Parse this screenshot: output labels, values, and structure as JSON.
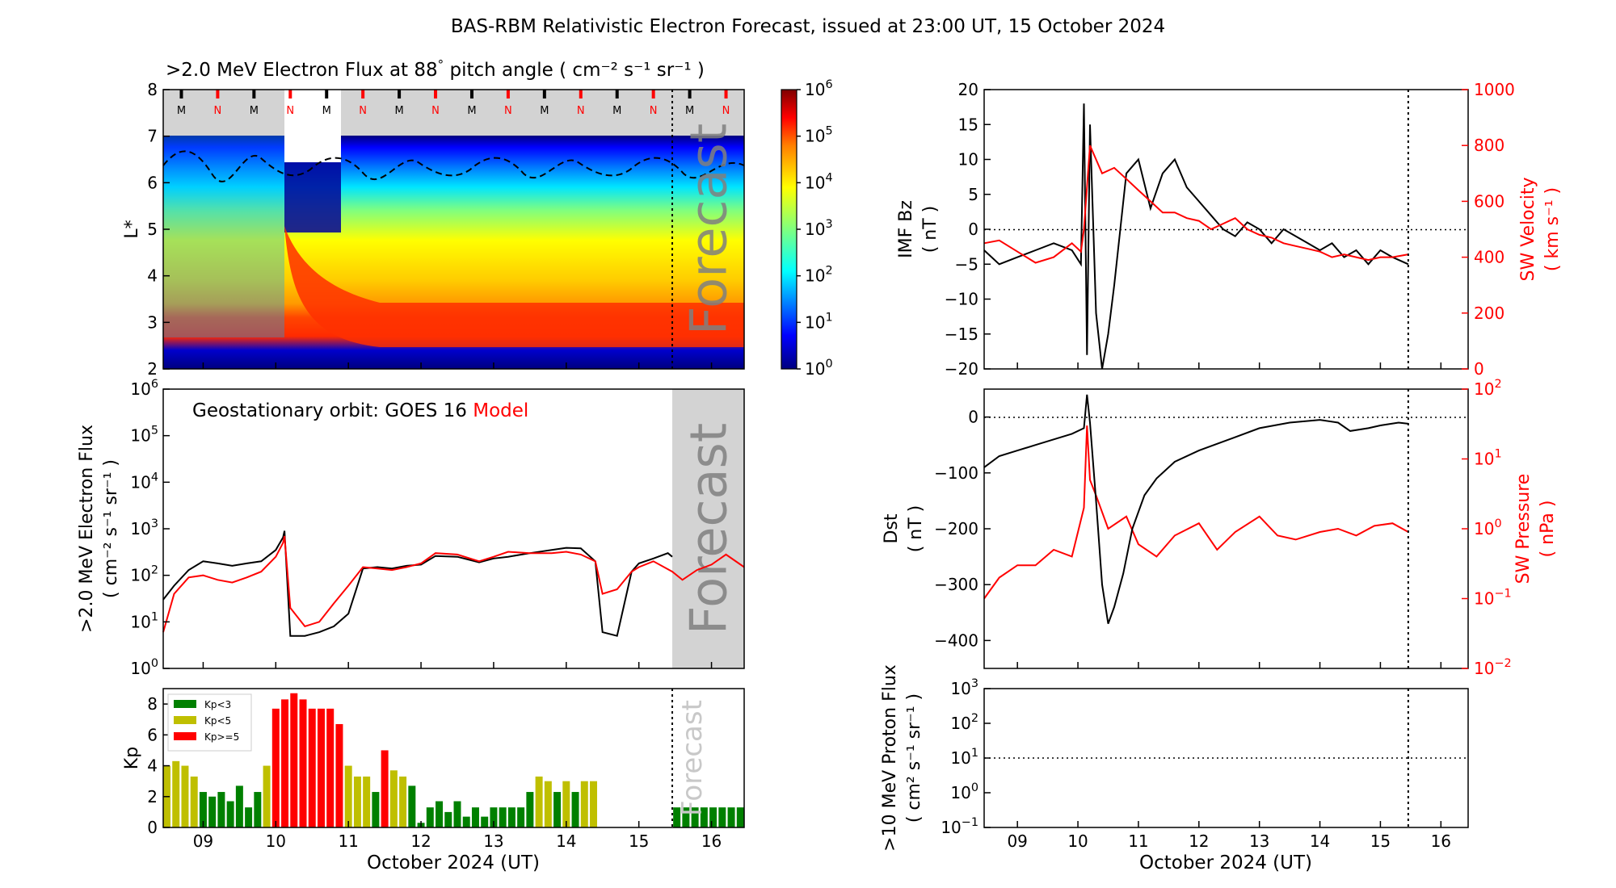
{
  "figure": {
    "title": "BAS-RBM Relativistic Electron Forecast, issued at 23:00 UT, 15 October 2024"
  },
  "chart_data": [
    {
      "id": "flux-map",
      "type": "heatmap",
      "title_main": ">2.0 MeV Electron Flux at 88",
      "title_deg": "°",
      "title_units": "( cm⁻² s⁻¹ sr⁻¹ )",
      "ylabel": "L*",
      "xlim": [
        8.45,
        16.45
      ],
      "ylim": [
        2,
        8
      ],
      "yticks": [
        "2",
        "3",
        "4",
        "5",
        "6",
        "7",
        "8"
      ],
      "markers": [
        {
          "x": 8.7,
          "label": "M",
          "color": "#000000"
        },
        {
          "x": 9.2,
          "label": "N",
          "color": "#ff0000"
        },
        {
          "x": 9.7,
          "label": "M",
          "color": "#000000"
        },
        {
          "x": 10.2,
          "label": "N",
          "color": "#ff0000"
        },
        {
          "x": 10.7,
          "label": "M",
          "color": "#000000"
        },
        {
          "x": 11.2,
          "label": "N",
          "color": "#ff0000"
        },
        {
          "x": 11.7,
          "label": "M",
          "color": "#000000"
        },
        {
          "x": 12.2,
          "label": "N",
          "color": "#ff0000"
        },
        {
          "x": 12.7,
          "label": "M",
          "color": "#000000"
        },
        {
          "x": 13.2,
          "label": "N",
          "color": "#ff0000"
        },
        {
          "x": 13.7,
          "label": "M",
          "color": "#000000"
        },
        {
          "x": 14.2,
          "label": "N",
          "color": "#ff0000"
        },
        {
          "x": 14.7,
          "label": "M",
          "color": "#000000"
        },
        {
          "x": 15.2,
          "label": "N",
          "color": "#ff0000"
        },
        {
          "x": 15.7,
          "label": "M",
          "color": "#000000"
        },
        {
          "x": 16.2,
          "label": "N",
          "color": "#ff0000"
        }
      ],
      "forecast_start": 15.46,
      "forecast_label": "Forecast",
      "colorbar": {
        "label_base": "10",
        "exponents": [
          "0",
          "1",
          "2",
          "3",
          "4",
          "5",
          "6"
        ],
        "colors": [
          "#00007f",
          "#0000ff",
          "#007fff",
          "#00ffff",
          "#7fff7f",
          "#ffff00",
          "#ff7f00",
          "#ff0000",
          "#7f0000"
        ]
      }
    },
    {
      "id": "geo-flux",
      "type": "line",
      "ylabel_line1": ">2.0 MeV Electron Flux",
      "ylabel_line2": "( cm⁻² s⁻¹ sr⁻¹ )",
      "yscale": "log",
      "ylim": [
        1,
        1000000
      ],
      "yticks_exp": [
        "0",
        "1",
        "2",
        "3",
        "4",
        "5",
        "6"
      ],
      "ytick_base": "10",
      "legend_prefix": "Geostationary orbit:   GOES 16",
      "legend_model": "Model",
      "forecast_label": "Forecast",
      "series": [
        {
          "name": "GOES 16",
          "color": "#000000",
          "x": [
            8.45,
            8.6,
            8.8,
            9.0,
            9.2,
            9.4,
            9.6,
            9.8,
            10.0,
            10.1,
            10.12,
            10.2,
            10.4,
            10.6,
            10.8,
            11.0,
            11.2,
            11.4,
            11.6,
            11.8,
            12.0,
            12.2,
            12.5,
            12.8,
            13.0,
            13.2,
            13.5,
            13.8,
            14.0,
            14.2,
            14.4,
            14.5,
            14.7,
            14.9,
            15.0,
            15.2,
            15.4,
            15.46
          ],
          "y": [
            30,
            60,
            130,
            200,
            180,
            160,
            180,
            200,
            350,
            650,
            900,
            5,
            5,
            6,
            8,
            15,
            140,
            150,
            140,
            160,
            170,
            260,
            250,
            190,
            230,
            250,
            300,
            350,
            390,
            380,
            200,
            6,
            5,
            120,
            180,
            230,
            300,
            250
          ]
        },
        {
          "name": "Model",
          "color": "#ff0000",
          "x": [
            8.45,
            8.6,
            8.8,
            9.0,
            9.2,
            9.4,
            9.6,
            9.8,
            10.0,
            10.1,
            10.12,
            10.2,
            10.4,
            10.6,
            10.8,
            11.0,
            11.2,
            11.4,
            11.6,
            11.8,
            12.0,
            12.2,
            12.5,
            12.8,
            13.0,
            13.2,
            13.5,
            13.8,
            14.0,
            14.2,
            14.4,
            14.5,
            14.7,
            14.9,
            15.0,
            15.2,
            15.46,
            15.6,
            15.8,
            16.0,
            16.2,
            16.45
          ],
          "y": [
            6,
            40,
            90,
            100,
            80,
            70,
            90,
            120,
            250,
            500,
            700,
            20,
            8,
            10,
            25,
            60,
            150,
            140,
            130,
            150,
            180,
            300,
            280,
            200,
            250,
            320,
            300,
            300,
            320,
            280,
            200,
            40,
            50,
            120,
            150,
            200,
            120,
            80,
            130,
            170,
            280,
            150
          ]
        }
      ],
      "forecast_start": 15.46
    },
    {
      "id": "kp",
      "type": "bar",
      "ylabel": "Kp",
      "ylim": [
        0,
        9
      ],
      "yticks": [
        "0",
        "2",
        "4",
        "6",
        "8"
      ],
      "xticks": [
        "09",
        "10",
        "11",
        "12",
        "13",
        "14",
        "15",
        "16"
      ],
      "xtick_values": [
        9,
        10,
        11,
        12,
        13,
        14,
        15,
        16
      ],
      "xlabel": "October 2024 (UT)",
      "forecast_label": "Forecast",
      "legend": [
        {
          "label": "Kp<3",
          "color": "#008000"
        },
        {
          "label": "Kp<5",
          "color": "#bfbf00"
        },
        {
          "label": "Kp>=5",
          "color": "#ff0000"
        }
      ],
      "bar_start": 8.5,
      "bar_step": 0.125,
      "values": [
        4.0,
        4.3,
        4.0,
        3.3,
        2.3,
        2.0,
        2.3,
        1.7,
        2.7,
        1.3,
        2.3,
        4.0,
        7.7,
        8.3,
        8.7,
        8.3,
        7.7,
        7.7,
        7.7,
        6.7,
        4.0,
        3.3,
        3.3,
        2.3,
        5.0,
        3.7,
        3.3,
        2.7,
        0.3,
        1.3,
        1.7,
        1.0,
        1.7,
        0.7,
        1.3,
        0.7,
        1.3,
        1.3,
        1.3,
        1.3,
        2.3,
        3.3,
        3.0,
        2.3,
        3.0,
        2.3,
        3.0,
        3.0
      ],
      "forecast_start": 15.46,
      "forecast_value": 1.3
    },
    {
      "id": "imf",
      "type": "line",
      "ylabel_left_line1": "IMF Bz",
      "ylabel_left_line2": "( nT )",
      "ylabel_right_line1": "SW Velocity",
      "ylabel_right_line2": "( km s⁻¹ )",
      "ylim_left": [
        -20,
        20
      ],
      "yticks_left": [
        "−20",
        "−15",
        "−10",
        "−5",
        "0",
        "5",
        "10",
        "15",
        "20"
      ],
      "ylim_right": [
        0,
        1000
      ],
      "yticks_right": [
        "0",
        "200",
        "400",
        "600",
        "800",
        "1000"
      ],
      "series": [
        {
          "name": "IMF Bz",
          "color": "#000000",
          "x": [
            8.45,
            8.7,
            9.0,
            9.3,
            9.6,
            9.9,
            10.05,
            10.1,
            10.15,
            10.2,
            10.3,
            10.4,
            10.5,
            10.6,
            10.8,
            11.0,
            11.2,
            11.4,
            11.6,
            11.8,
            12.0,
            12.2,
            12.4,
            12.6,
            12.8,
            13.0,
            13.2,
            13.4,
            13.6,
            13.8,
            14.0,
            14.2,
            14.4,
            14.6,
            14.8,
            15.0,
            15.2,
            15.46
          ],
          "y": [
            -3,
            -5,
            -4,
            -3,
            -2,
            -3,
            -5,
            18,
            -18,
            15,
            -12,
            -20,
            -15,
            -8,
            8,
            10,
            3,
            8,
            10,
            6,
            4,
            2,
            0,
            -1,
            1,
            0,
            -2,
            0,
            -1,
            -2,
            -3,
            -2,
            -4,
            -3,
            -5,
            -3,
            -4,
            -5
          ]
        },
        {
          "name": "SW Velocity",
          "color": "#ff0000",
          "x": [
            8.45,
            8.7,
            9.0,
            9.3,
            9.6,
            9.9,
            10.05,
            10.1,
            10.2,
            10.3,
            10.4,
            10.6,
            10.8,
            11.0,
            11.2,
            11.4,
            11.6,
            11.8,
            12.0,
            12.2,
            12.4,
            12.6,
            12.8,
            13.0,
            13.2,
            13.4,
            13.6,
            13.8,
            14.0,
            14.2,
            14.4,
            14.6,
            14.8,
            15.0,
            15.2,
            15.46
          ],
          "y": [
            450,
            460,
            420,
            380,
            400,
            450,
            420,
            500,
            800,
            750,
            700,
            720,
            680,
            640,
            600,
            560,
            560,
            540,
            530,
            500,
            520,
            540,
            500,
            480,
            470,
            450,
            440,
            430,
            420,
            400,
            410,
            400,
            390,
            400,
            400,
            410
          ]
        }
      ],
      "forecast_start": 15.46
    },
    {
      "id": "dst",
      "type": "line",
      "ylabel_left_line1": "Dst",
      "ylabel_left_line2": "( nT )",
      "ylabel_right_line1": "SW Pressure",
      "ylabel_right_line2": "( nPa )",
      "ylim_left": [
        -450,
        50
      ],
      "yticks_left": [
        "−400",
        "−300",
        "−200",
        "−100",
        "0"
      ],
      "ylim_right_exp": [
        -2,
        2
      ],
      "yticks_right_exp": [
        "−2",
        "−1",
        "0",
        "1",
        "2"
      ],
      "ytick_base": "10",
      "series": [
        {
          "name": "Dst",
          "color": "#000000",
          "x": [
            8.45,
            8.7,
            9.0,
            9.3,
            9.6,
            9.9,
            10.1,
            10.15,
            10.2,
            10.3,
            10.4,
            10.5,
            10.6,
            10.75,
            10.9,
            11.1,
            11.3,
            11.6,
            12.0,
            12.5,
            13.0,
            13.5,
            14.0,
            14.3,
            14.5,
            14.8,
            15.0,
            15.3,
            15.46
          ],
          "y": [
            -90,
            -70,
            -60,
            -50,
            -40,
            -30,
            -20,
            40,
            -10,
            -150,
            -300,
            -370,
            -340,
            -280,
            -200,
            -140,
            -110,
            -80,
            -60,
            -40,
            -20,
            -10,
            -5,
            -10,
            -25,
            -20,
            -15,
            -10,
            -12
          ]
        },
        {
          "name": "SW Pressure",
          "color": "#ff0000",
          "x": [
            8.45,
            8.7,
            9.0,
            9.3,
            9.6,
            9.9,
            10.1,
            10.15,
            10.2,
            10.3,
            10.5,
            10.8,
            11.0,
            11.3,
            11.6,
            12.0,
            12.3,
            12.6,
            13.0,
            13.3,
            13.6,
            14.0,
            14.3,
            14.6,
            14.9,
            15.2,
            15.46
          ],
          "y": [
            0.1,
            0.2,
            0.3,
            0.3,
            0.5,
            0.4,
            2,
            30,
            5,
            3,
            1,
            1.5,
            0.6,
            0.4,
            0.8,
            1.2,
            0.5,
            0.9,
            1.5,
            0.8,
            0.7,
            0.9,
            1,
            0.8,
            1.1,
            1.2,
            0.9
          ]
        }
      ],
      "forecast_start": 15.46
    },
    {
      "id": "proton",
      "type": "line",
      "ylabel_line1": ">10 MeV Proton Flux",
      "ylabel_line2": "( cm² s⁻¹ sr⁻¹ )",
      "yscale": "log",
      "ylim_exp": [
        -1,
        3
      ],
      "yticks_exp": [
        "−1",
        "0",
        "1",
        "2",
        "3"
      ],
      "ytick_base": "10",
      "threshold": 10,
      "xticks": [
        "09",
        "10",
        "11",
        "12",
        "13",
        "14",
        "15",
        "16"
      ],
      "xtick_values": [
        9,
        10,
        11,
        12,
        13,
        14,
        15,
        16
      ],
      "xlabel": "October 2024 (UT)",
      "forecast_start": 15.46
    }
  ]
}
